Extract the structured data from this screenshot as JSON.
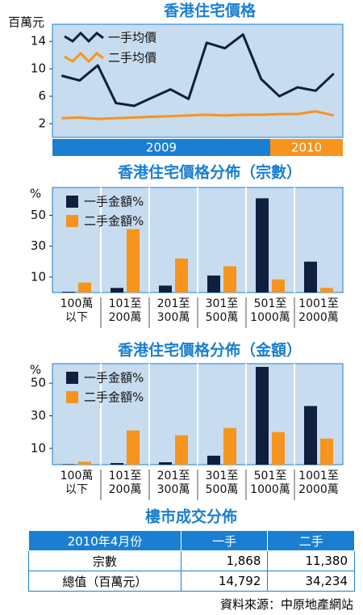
{
  "chart_data": [
    {
      "type": "line",
      "title": "香港住宅價格",
      "y_label": "百萬元",
      "categories": [
        "2009",
        null,
        null,
        null,
        null,
        null,
        null,
        null,
        null,
        null,
        null,
        null,
        "2010",
        null,
        null,
        null
      ],
      "period_colors": [
        "#1a7fd0",
        "#f7941d"
      ],
      "series": [
        {
          "name": "一手均價",
          "color": "#0f1f3d",
          "values": [
            9,
            8.3,
            10.5,
            5,
            4.6,
            5.8,
            7,
            5.6,
            13.8,
            13,
            15,
            8.5,
            6,
            7.3,
            6.8,
            9.3
          ]
        },
        {
          "name": "二手均價",
          "color": "#f7941d",
          "values": [
            2.8,
            2.9,
            2.7,
            2.8,
            2.9,
            3.0,
            3.1,
            3.2,
            3.3,
            3.2,
            3.3,
            3.3,
            3.4,
            3.4,
            3.8,
            3.2
          ]
        }
      ],
      "ylim": [
        0,
        16.5
      ],
      "yticks": [
        2,
        6,
        10,
        14
      ]
    },
    {
      "type": "bar",
      "title": "香港住宅價格分佈（宗數）",
      "y_label": "%",
      "categories": [
        "100萬\n以下",
        "101至\n200萬",
        "201至\n300萬",
        "301至\n500萬",
        "501至\n1000萬",
        "1001至\n2000萬"
      ],
      "series": [
        {
          "name": "一手金額%",
          "color": "#0f1f3d",
          "values": [
            0.5,
            3,
            4.5,
            11,
            61,
            20
          ]
        },
        {
          "name": "二手金額%",
          "color": "#f7941d",
          "values": [
            6.5,
            41,
            22,
            17,
            8.5,
            3
          ]
        }
      ],
      "ylim": [
        0,
        68
      ],
      "yticks": [
        10,
        30,
        50
      ]
    },
    {
      "type": "bar",
      "title": "香港住宅價格分佈（金額）",
      "y_label": "%",
      "categories": [
        "100萬\n以下",
        "101至\n200萬",
        "201至\n300萬",
        "301至\n500萬",
        "501至\n1000萬",
        "1001至\n2000萬"
      ],
      "series": [
        {
          "name": "一手金額%",
          "color": "#0f1f3d",
          "values": [
            0.3,
            1,
            1.5,
            5.5,
            60,
            36
          ]
        },
        {
          "name": "二手金額%",
          "color": "#f7941d",
          "values": [
            1.8,
            21,
            18,
            22.5,
            20,
            16
          ]
        }
      ],
      "ylim": [
        0,
        62
      ],
      "yticks": [
        10,
        30,
        50
      ]
    }
  ],
  "table": {
    "title": "樓市成交分佈",
    "header": [
      "2010年4月份",
      "一手",
      "二手"
    ],
    "rows": [
      [
        "宗數",
        "1,868",
        "11,380"
      ],
      [
        "總值（百萬元）",
        "14,792",
        "34,234"
      ]
    ]
  },
  "source": "資料來源：中原地產網站"
}
